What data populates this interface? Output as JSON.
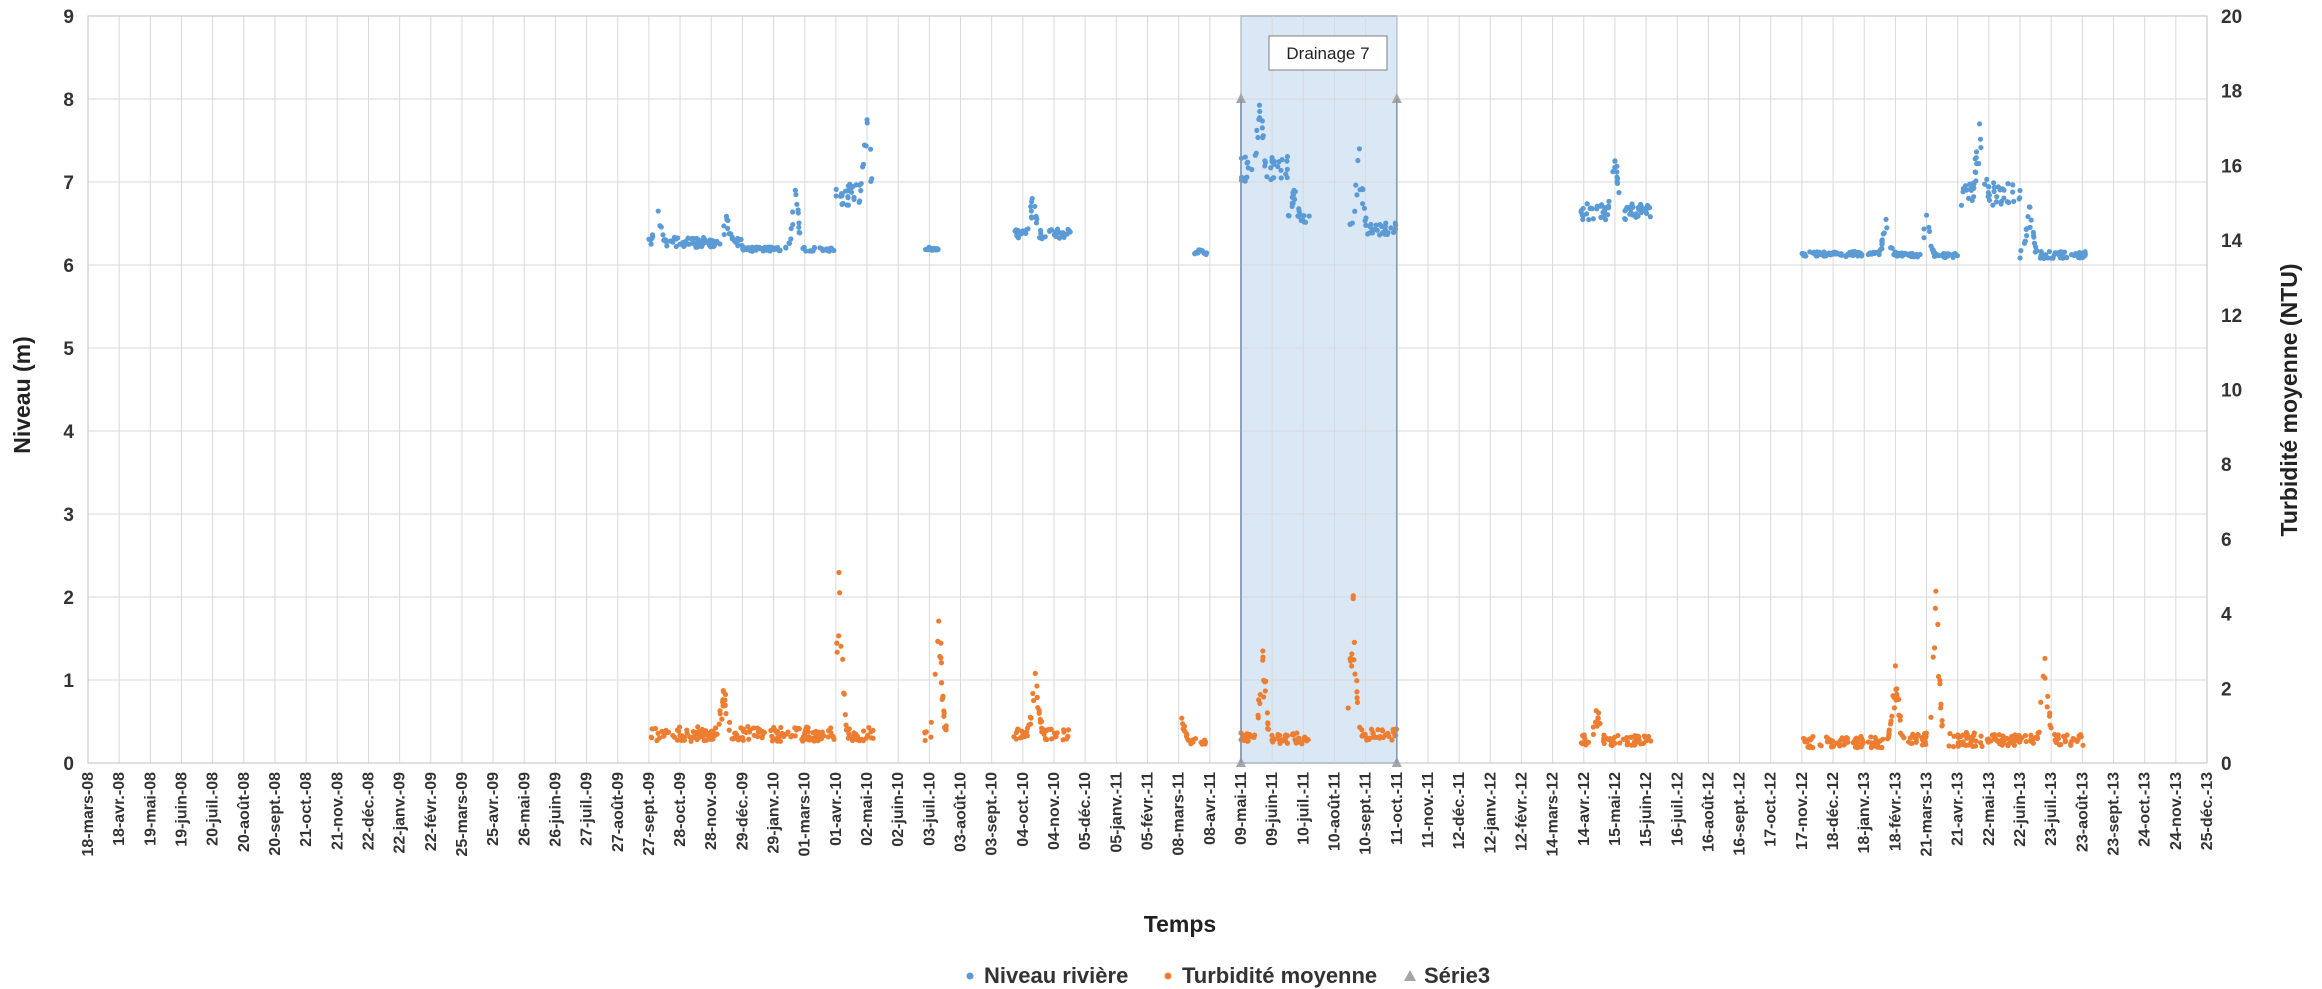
{
  "chart_data": {
    "type": "scatter",
    "x_axis": {
      "title": "Temps",
      "tick_labels": [
        "18-mars-08",
        "18-avr.-08",
        "19-mai-08",
        "19-juin-08",
        "20-juil.-08",
        "20-août-08",
        "20-sept.-08",
        "21-oct.-08",
        "21-nov.-08",
        "22-déc.-08",
        "22-janv.-09",
        "22-févr.-09",
        "25-mars-09",
        "25-avr.-09",
        "26-mai-09",
        "26-juin-09",
        "27-juil.-09",
        "27-août-09",
        "27-sept.-09",
        "28-oct.-09",
        "28-nov.-09",
        "29-déc.-09",
        "29-janv.-10",
        "01-mars-10",
        "01-avr.-10",
        "02-mai-10",
        "02-juin-10",
        "03-juil.-10",
        "03-août-10",
        "03-sept.-10",
        "04-oct.-10",
        "04-nov.-10",
        "05-déc.-10",
        "05-janv.-11",
        "05-févr.-11",
        "08-mars-11",
        "08-avr.-11",
        "09-mai-11",
        "09-juin-11",
        "10-juil.-11",
        "10-août-11",
        "10-sept.-11",
        "11-oct.-11",
        "11-nov.-11",
        "12-déc.-11",
        "12-janv.-12",
        "12-févr.-12",
        "14-mars-12",
        "14-avr.-12",
        "15-mai-12",
        "15-juin-12",
        "16-juil.-12",
        "16-août-12",
        "16-sept.-12",
        "17-oct.-12",
        "17-nov.-12",
        "18-déc.-12",
        "18-janv.-13",
        "18-févr.-13",
        "21-mars-13",
        "21-avr.-13",
        "22-mai-13",
        "22-juin-13",
        "23-juil.-13",
        "23-août-13",
        "23-sept.-13",
        "24-oct.-13",
        "24-nov.-13",
        "25-déc.-13"
      ]
    },
    "y_left": {
      "title": "Niveau (m)",
      "range": [
        0,
        9
      ],
      "ticks": [
        "0",
        "1",
        "2",
        "3",
        "4",
        "5",
        "6",
        "7",
        "8",
        "9"
      ]
    },
    "y_right": {
      "title": "Turbidité moyenne (NTU)",
      "range": [
        0,
        20
      ],
      "ticks": [
        "0",
        "2",
        "4",
        "6",
        "8",
        "10",
        "12",
        "14",
        "16",
        "18",
        "20"
      ]
    },
    "grid": true,
    "legend": {
      "placement": "bottom",
      "entries": [
        "Niveau rivière",
        "Turbidité moyenne",
        "Série3"
      ]
    },
    "annotation": {
      "text": "Drainage 7",
      "x_start": "09-mai-11",
      "x_end": "11-oct.-11"
    },
    "colors": {
      "niveau": "#5b9bd5",
      "turbidite": "#ed7d31",
      "serie3": "#a5a5a5",
      "shade": "#dae8f6",
      "shade_border": "#7f96b3"
    },
    "series": [
      {
        "name": "Niveau rivière",
        "axis": "left",
        "clusters": [
          {
            "from": 18.0,
            "to": 19.95,
            "base": 6.25,
            "var": 0.12,
            "peak_at": 18.3,
            "peak": 6.65
          },
          {
            "from": 19.95,
            "to": 21.0,
            "base": 6.25,
            "var": 0.1,
            "peak_at": 20.5,
            "peak": 6.55
          },
          {
            "from": 21.0,
            "to": 23.95,
            "base": 6.18,
            "var": 0.05,
            "peak_at": 22.7,
            "peak": 6.9
          },
          {
            "from": 24.0,
            "to": 25.2,
            "base": 6.8,
            "var": 0.3,
            "peak_at": 25.0,
            "peak": 7.75
          },
          {
            "from": 26.85,
            "to": 27.4,
            "base": 6.18,
            "var": 0.03,
            "peak_at": 27.0,
            "peak": 6.2
          },
          {
            "from": 29.7,
            "to": 31.6,
            "base": 6.35,
            "var": 0.12,
            "peak_at": 30.3,
            "peak": 6.8
          },
          {
            "from": 35.4,
            "to": 35.9,
            "base": 6.12,
            "var": 0.03,
            "peak_at": 35.7,
            "peak": 6.18
          },
          {
            "from": 37.0,
            "to": 38.5,
            "base": 7.1,
            "var": 0.3,
            "peak_at": 37.6,
            "peak": 7.85
          },
          {
            "from": 38.5,
            "to": 39.2,
            "base": 6.5,
            "var": 0.15,
            "peak_at": 38.7,
            "peak": 6.9
          },
          {
            "from": 40.5,
            "to": 42.0,
            "base": 6.4,
            "var": 0.15,
            "peak_at": 40.8,
            "peak": 7.4
          },
          {
            "from": 47.9,
            "to": 50.2,
            "base": 6.6,
            "var": 0.2,
            "peak_at": 49.0,
            "peak": 7.25
          },
          {
            "from": 55.0,
            "to": 58.5,
            "base": 6.12,
            "var": 0.06,
            "peak_at": 57.7,
            "peak": 6.55
          },
          {
            "from": 58.5,
            "to": 60.1,
            "base": 6.1,
            "var": 0.06,
            "peak_at": 59.0,
            "peak": 6.6
          },
          {
            "from": 60.1,
            "to": 62.0,
            "base": 6.8,
            "var": 0.3,
            "peak_at": 60.7,
            "peak": 7.7
          },
          {
            "from": 62.0,
            "to": 64.1,
            "base": 6.1,
            "var": 0.1,
            "peak_at": 62.3,
            "peak": 6.7
          }
        ]
      },
      {
        "name": "Turbidité moyenne",
        "axis": "right",
        "clusters": [
          {
            "from": 18.0,
            "to": 23.95,
            "base": 0.7,
            "var": 0.4,
            "peak_at": 20.4,
            "peak": 1.9
          },
          {
            "from": 24.0,
            "to": 25.2,
            "base": 0.7,
            "var": 0.4,
            "peak_at": 24.1,
            "peak": 5.1
          },
          {
            "from": 26.8,
            "to": 27.6,
            "base": 0.7,
            "var": 0.4,
            "peak_at": 27.3,
            "peak": 3.8
          },
          {
            "from": 29.7,
            "to": 31.5,
            "base": 0.7,
            "var": 0.3,
            "peak_at": 30.4,
            "peak": 2.4
          },
          {
            "from": 35.1,
            "to": 35.9,
            "base": 0.55,
            "var": 0.15,
            "peak_at": 35.1,
            "peak": 1.2
          },
          {
            "from": 37.0,
            "to": 39.2,
            "base": 0.6,
            "var": 0.3,
            "peak_at": 37.7,
            "peak": 3.0
          },
          {
            "from": 40.4,
            "to": 42.0,
            "base": 0.7,
            "var": 0.3,
            "peak_at": 40.6,
            "peak": 4.4
          },
          {
            "from": 47.9,
            "to": 50.2,
            "base": 0.55,
            "var": 0.3,
            "peak_at": 48.4,
            "peak": 1.4
          },
          {
            "from": 55.0,
            "to": 58.5,
            "base": 0.5,
            "var": 0.3,
            "peak_at": 58.0,
            "peak": 2.6
          },
          {
            "from": 58.5,
            "to": 61.0,
            "base": 0.55,
            "var": 0.4,
            "peak_at": 59.3,
            "peak": 4.6
          },
          {
            "from": 61.0,
            "to": 64.1,
            "base": 0.55,
            "var": 0.3,
            "peak_at": 62.8,
            "peak": 2.8
          }
        ]
      },
      {
        "name": "Série3",
        "axis": "left",
        "points": [
          {
            "x": "09-mai-11",
            "y": 8.0
          },
          {
            "x": "11-oct.-11",
            "y": 8.0
          },
          {
            "x": "09-mai-11",
            "y": 0
          },
          {
            "x": "11-oct.-11",
            "y": 0
          }
        ]
      }
    ]
  }
}
